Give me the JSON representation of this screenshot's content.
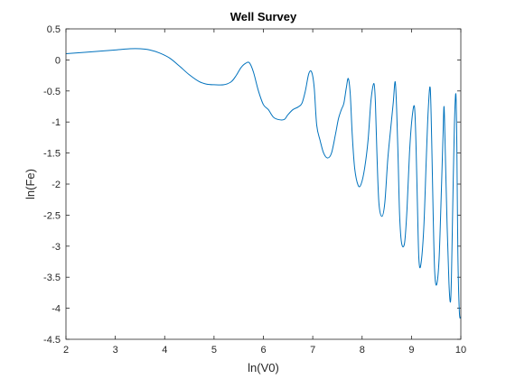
{
  "chart_data": {
    "type": "line",
    "title": "Well Survey",
    "xlabel": "ln(V0)",
    "ylabel": "ln(Fe)",
    "xlim": [
      2,
      10
    ],
    "ylim": [
      -4.5,
      0.5
    ],
    "xticks": [
      2,
      3,
      4,
      5,
      6,
      7,
      8,
      9,
      10
    ],
    "yticks": [
      0.5,
      0,
      -0.5,
      -1,
      -1.5,
      -2,
      -2.5,
      -3,
      -3.5,
      -4,
      -4.5
    ],
    "xtick_labels": [
      "2",
      "3",
      "4",
      "5",
      "6",
      "7",
      "8",
      "9",
      "10"
    ],
    "ytick_labels": [
      "0.5",
      "0",
      "-0.5",
      "-1",
      "-1.5",
      "-2",
      "-2.5",
      "-3",
      "-3.5",
      "-4",
      "-4.5"
    ],
    "grid": false,
    "box": true,
    "line_color": "#0072BD",
    "series": [
      {
        "x": [
          2.0,
          2.5,
          3.0,
          3.3,
          3.5,
          3.7,
          3.9,
          4.1,
          4.3,
          4.5,
          4.7,
          4.85,
          5.0,
          5.2,
          5.35,
          5.45,
          5.55,
          5.65,
          5.72,
          5.8,
          5.9,
          6.0,
          6.1,
          6.2,
          6.3,
          6.42,
          6.5,
          6.6,
          6.7,
          6.78,
          6.85,
          6.92,
          6.98,
          7.03,
          7.08,
          7.15,
          7.22,
          7.3,
          7.38,
          7.46,
          7.52,
          7.58,
          7.63,
          7.68,
          7.72,
          7.76,
          7.8,
          7.85,
          7.92,
          7.98,
          8.05,
          8.12,
          8.18,
          8.24,
          8.27,
          8.3,
          8.34,
          8.4,
          8.46,
          8.52,
          8.58,
          8.63,
          8.67,
          8.7,
          8.73,
          8.76,
          8.8,
          8.86,
          8.91,
          8.96,
          9.01,
          9.06,
          9.09,
          9.12,
          9.15,
          9.19,
          9.25,
          9.3,
          9.34,
          9.38,
          9.41,
          9.44,
          9.47,
          9.51,
          9.56,
          9.61,
          9.64,
          9.66,
          9.68,
          9.72,
          9.76,
          9.79,
          9.81,
          9.84,
          9.87,
          9.9,
          9.92,
          9.94,
          9.97,
          10.0
        ],
        "y": [
          0.1,
          0.13,
          0.16,
          0.18,
          0.18,
          0.16,
          0.11,
          0.03,
          -0.1,
          -0.24,
          -0.35,
          -0.39,
          -0.4,
          -0.4,
          -0.35,
          -0.25,
          -0.12,
          -0.05,
          -0.05,
          -0.2,
          -0.5,
          -0.72,
          -0.8,
          -0.92,
          -0.96,
          -0.96,
          -0.88,
          -0.8,
          -0.76,
          -0.7,
          -0.5,
          -0.22,
          -0.2,
          -0.45,
          -1.05,
          -1.3,
          -1.5,
          -1.58,
          -1.5,
          -1.2,
          -0.95,
          -0.8,
          -0.7,
          -0.45,
          -0.3,
          -0.55,
          -1.2,
          -1.75,
          -2.02,
          -2.0,
          -1.75,
          -1.3,
          -0.65,
          -0.38,
          -0.7,
          -1.5,
          -2.3,
          -2.52,
          -2.3,
          -1.6,
          -1.1,
          -0.7,
          -0.35,
          -0.8,
          -1.6,
          -2.5,
          -2.95,
          -2.95,
          -2.4,
          -1.5,
          -0.95,
          -0.75,
          -1.3,
          -2.3,
          -3.2,
          -3.3,
          -2.7,
          -1.6,
          -0.8,
          -0.45,
          -1.3,
          -2.5,
          -3.4,
          -3.62,
          -3.2,
          -2.0,
          -1.2,
          -0.75,
          -1.3,
          -2.6,
          -3.6,
          -3.9,
          -3.5,
          -2.2,
          -1.05,
          -0.55,
          -1.4,
          -3.1,
          -4.05,
          -4.15
        ]
      }
    ]
  }
}
